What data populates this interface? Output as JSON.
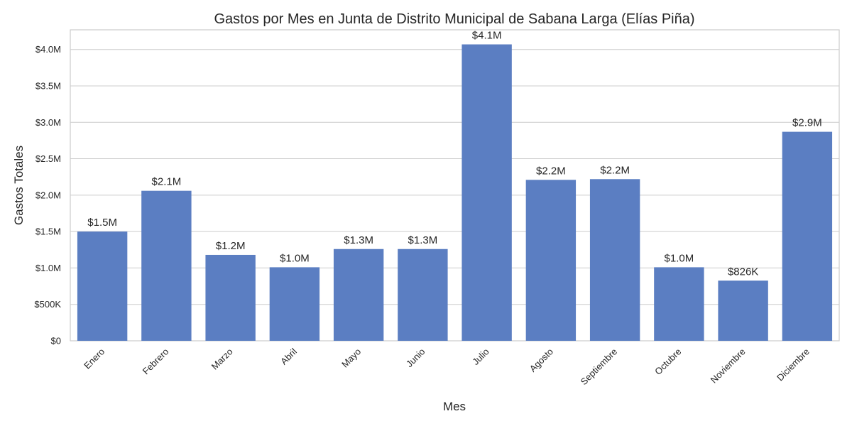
{
  "chart_data": {
    "type": "bar",
    "title": "Gastos por Mes en Junta de Distrito Municipal de Sabana Larga (Elías Piña)",
    "xlabel": "Mes",
    "ylabel": "Gastos Totales",
    "categories": [
      "Enero",
      "Febrero",
      "Marzo",
      "Abril",
      "Mayo",
      "Junio",
      "Julio",
      "Agosto",
      "Septiembre",
      "Octubre",
      "Noviembre",
      "Diciembre"
    ],
    "values": [
      1500000,
      2060000,
      1180000,
      1010000,
      1260000,
      1260000,
      4070000,
      2210000,
      2220000,
      1010000,
      826000,
      2870000
    ],
    "data_labels": [
      "$1.5M",
      "$2.1M",
      "$1.2M",
      "$1.0M",
      "$1.3M",
      "$1.3M",
      "$4.1M",
      "$2.2M",
      "$2.2M",
      "$1.0M",
      "$826K",
      "$2.9M"
    ],
    "yticks": [
      0,
      500000,
      1000000,
      1500000,
      2000000,
      2500000,
      3000000,
      3500000,
      4000000
    ],
    "ytick_labels": [
      "$0",
      "$500K",
      "$1.0M",
      "$1.5M",
      "$2.0M",
      "$2.5M",
      "$3.0M",
      "$3.5M",
      "$4.0M"
    ],
    "ylim": [
      0,
      4270000
    ],
    "grid": "horizontal",
    "bar_color": "#5b7ec2"
  }
}
